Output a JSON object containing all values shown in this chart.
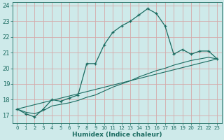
{
  "xlabel": "Humidex (Indice chaleur)",
  "background_color": "#ceeaea",
  "grid_color": "#d4aaaa",
  "line_color": "#1a6b60",
  "xlim": [
    -0.5,
    23.5
  ],
  "ylim": [
    16.5,
    24.2
  ],
  "yticks": [
    17,
    18,
    19,
    20,
    21,
    22,
    23,
    24
  ],
  "xticks": [
    0,
    1,
    2,
    3,
    4,
    5,
    6,
    7,
    8,
    9,
    10,
    11,
    12,
    13,
    14,
    15,
    16,
    17,
    18,
    19,
    20,
    21,
    22,
    23
  ],
  "series1_x": [
    0,
    1,
    2,
    3,
    4,
    5,
    6,
    7,
    8,
    9,
    10,
    11,
    12,
    13,
    14,
    15,
    16,
    17,
    18,
    19,
    20,
    21,
    22,
    23
  ],
  "series1_y": [
    17.4,
    17.1,
    16.9,
    17.4,
    18.0,
    17.9,
    18.1,
    18.3,
    20.3,
    20.3,
    21.5,
    22.3,
    22.7,
    23.0,
    23.4,
    23.8,
    23.5,
    22.7,
    20.9,
    21.2,
    20.9,
    21.1,
    21.1,
    20.6
  ],
  "series2_x": [
    0,
    23
  ],
  "series2_y": [
    17.4,
    20.6
  ],
  "series3_x": [
    0,
    1,
    2,
    3,
    4,
    5,
    6,
    7,
    8,
    9,
    10,
    11,
    12,
    13,
    14,
    15,
    16,
    17,
    18,
    19,
    20,
    21,
    22,
    23
  ],
  "series3_y": [
    17.4,
    17.2,
    17.1,
    17.3,
    17.6,
    17.7,
    17.8,
    17.95,
    18.15,
    18.3,
    18.55,
    18.8,
    19.0,
    19.2,
    19.45,
    19.65,
    19.85,
    20.0,
    20.2,
    20.35,
    20.5,
    20.6,
    20.7,
    20.6
  ]
}
